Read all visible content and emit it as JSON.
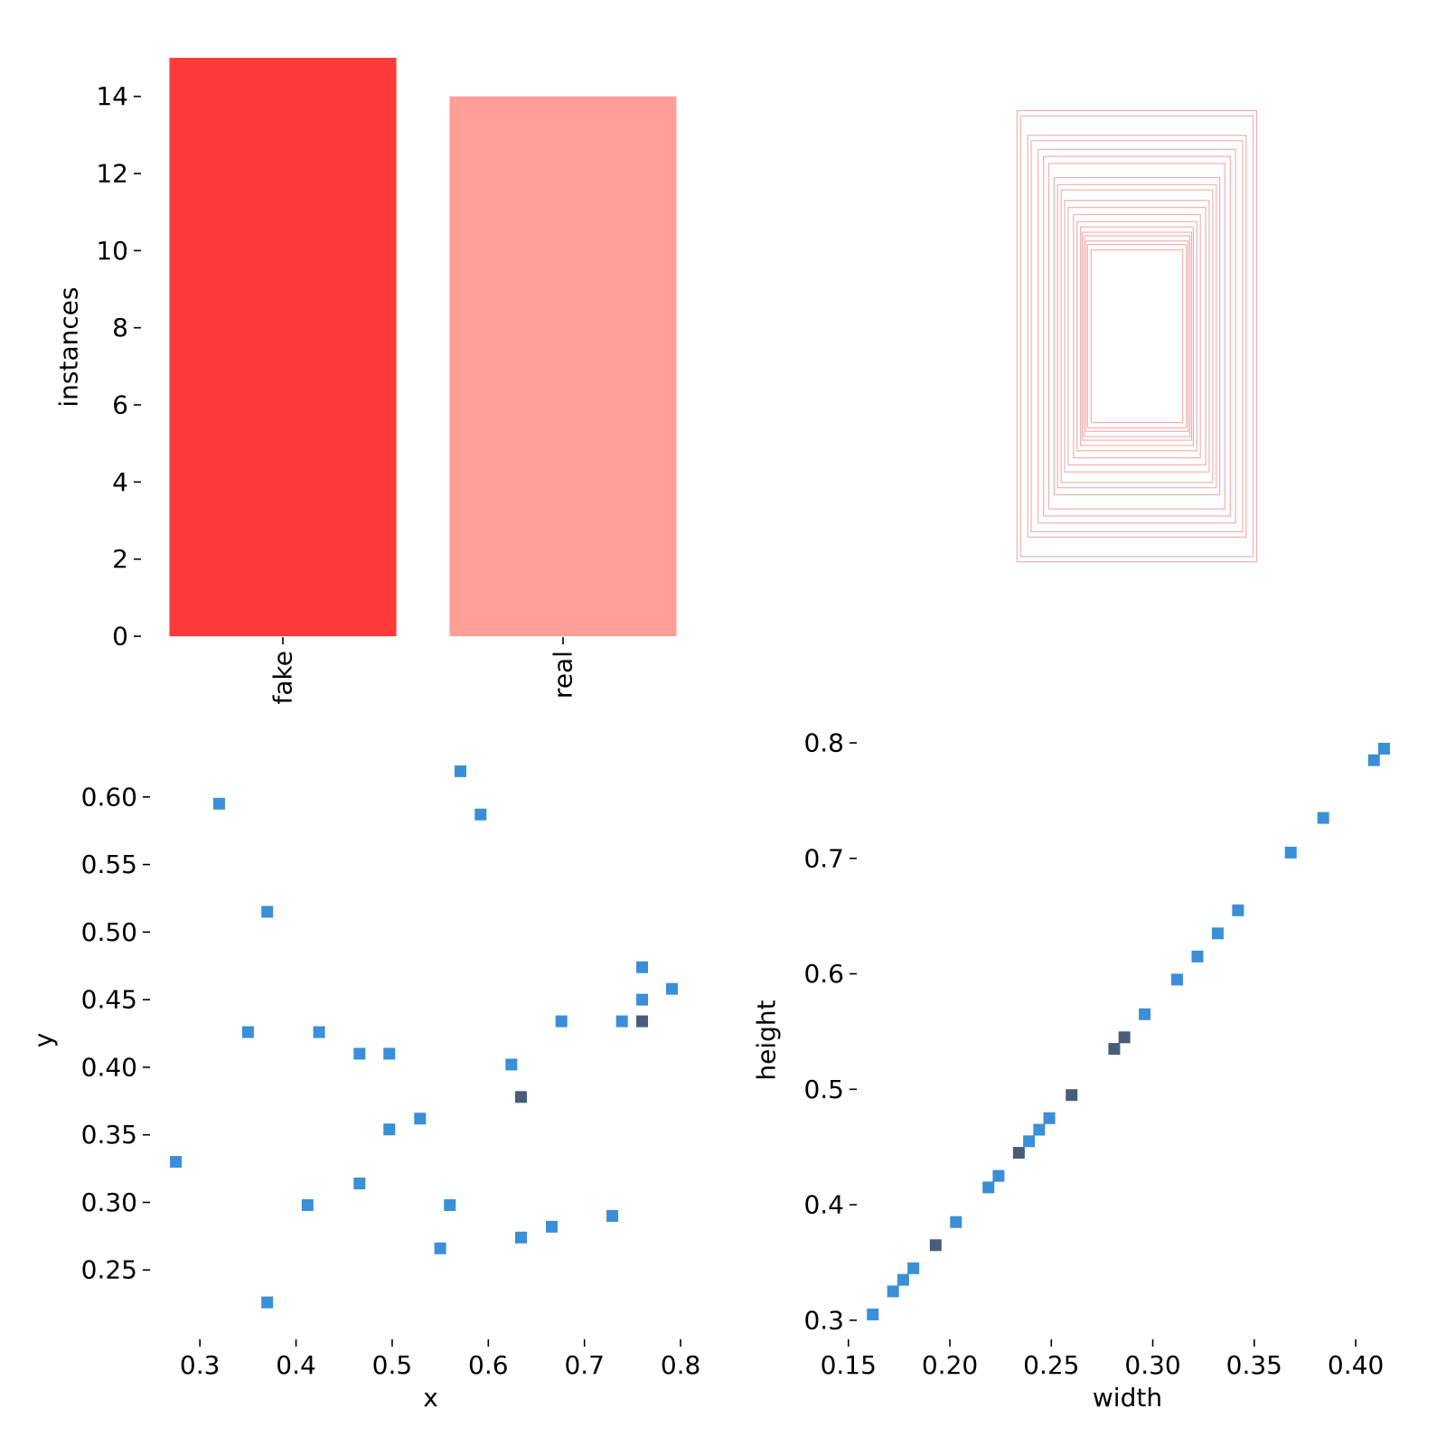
{
  "colors": {
    "fake_bar": "#ff3a3a",
    "real_bar": "#ff9f98",
    "box_stroke": "#e57373",
    "point": "#3a8fd8",
    "point_dense": "#4a5d78"
  },
  "chart_data": [
    {
      "id": "instances",
      "type": "bar",
      "categories": [
        "fake",
        "real"
      ],
      "values": [
        15,
        14
      ],
      "xlabel": "",
      "ylabel": "instances",
      "ylim": [
        0,
        15
      ],
      "yticks": [
        "0",
        "2",
        "4",
        "6",
        "8",
        "10",
        "12",
        "14"
      ],
      "grid": false
    },
    {
      "id": "boxes",
      "type": "other",
      "description_type": "box-outline-overlay",
      "boxes": [
        {
          "w": 0.34,
          "h": 0.64
        },
        {
          "w": 0.33,
          "h": 0.625
        },
        {
          "w": 0.31,
          "h": 0.57
        },
        {
          "w": 0.3,
          "h": 0.555
        },
        {
          "w": 0.28,
          "h": 0.53
        },
        {
          "w": 0.265,
          "h": 0.51
        },
        {
          "w": 0.25,
          "h": 0.49
        },
        {
          "w": 0.235,
          "h": 0.45
        },
        {
          "w": 0.225,
          "h": 0.43
        },
        {
          "w": 0.215,
          "h": 0.415
        },
        {
          "w": 0.205,
          "h": 0.385
        },
        {
          "w": 0.195,
          "h": 0.365
        },
        {
          "w": 0.18,
          "h": 0.345
        },
        {
          "w": 0.17,
          "h": 0.325
        },
        {
          "w": 0.16,
          "h": 0.31
        },
        {
          "w": 0.155,
          "h": 0.295
        },
        {
          "w": 0.15,
          "h": 0.285
        },
        {
          "w": 0.145,
          "h": 0.27
        },
        {
          "w": 0.14,
          "h": 0.26
        },
        {
          "w": 0.13,
          "h": 0.245
        }
      ]
    },
    {
      "id": "xy",
      "type": "scatter",
      "xlabel": "x",
      "ylabel": "y",
      "xlim": [
        0.25,
        0.83
      ],
      "ylim": [
        0.2,
        0.64
      ],
      "xticks": [
        "0.3",
        "0.4",
        "0.5",
        "0.6",
        "0.7",
        "0.8"
      ],
      "yticks": [
        "0.25",
        "0.30",
        "0.35",
        "0.40",
        "0.45",
        "0.50",
        "0.55",
        "0.60"
      ],
      "points": [
        {
          "x": 0.275,
          "y": 0.33,
          "d": 0
        },
        {
          "x": 0.32,
          "y": 0.595,
          "d": 0
        },
        {
          "x": 0.35,
          "y": 0.426,
          "d": 0
        },
        {
          "x": 0.37,
          "y": 0.515,
          "d": 0
        },
        {
          "x": 0.37,
          "y": 0.226,
          "d": 0
        },
        {
          "x": 0.412,
          "y": 0.298,
          "d": 0
        },
        {
          "x": 0.424,
          "y": 0.426,
          "d": 0
        },
        {
          "x": 0.466,
          "y": 0.41,
          "d": 0
        },
        {
          "x": 0.466,
          "y": 0.314,
          "d": 0
        },
        {
          "x": 0.497,
          "y": 0.41,
          "d": 0
        },
        {
          "x": 0.497,
          "y": 0.354,
          "d": 0
        },
        {
          "x": 0.529,
          "y": 0.362,
          "d": 0
        },
        {
          "x": 0.55,
          "y": 0.266,
          "d": 0
        },
        {
          "x": 0.56,
          "y": 0.298,
          "d": 0
        },
        {
          "x": 0.571,
          "y": 0.619,
          "d": 0
        },
        {
          "x": 0.592,
          "y": 0.587,
          "d": 0
        },
        {
          "x": 0.624,
          "y": 0.402,
          "d": 0
        },
        {
          "x": 0.634,
          "y": 0.378,
          "d": 1
        },
        {
          "x": 0.634,
          "y": 0.274,
          "d": 0
        },
        {
          "x": 0.666,
          "y": 0.282,
          "d": 0
        },
        {
          "x": 0.676,
          "y": 0.434,
          "d": 0
        },
        {
          "x": 0.729,
          "y": 0.29,
          "d": 0
        },
        {
          "x": 0.739,
          "y": 0.434,
          "d": 0
        },
        {
          "x": 0.76,
          "y": 0.474,
          "d": 0
        },
        {
          "x": 0.76,
          "y": 0.45,
          "d": 0
        },
        {
          "x": 0.76,
          "y": 0.434,
          "d": 1
        },
        {
          "x": 0.791,
          "y": 0.458,
          "d": 0
        }
      ]
    },
    {
      "id": "wh",
      "type": "scatter",
      "xlabel": "width",
      "ylabel": "height",
      "xlim": [
        0.155,
        0.42
      ],
      "ylim": [
        0.285,
        0.8
      ],
      "xticks": [
        "0.15",
        "0.20",
        "0.25",
        "0.30",
        "0.35",
        "0.40"
      ],
      "yticks": [
        "0.3",
        "0.4",
        "0.5",
        "0.6",
        "0.7",
        "0.8"
      ],
      "points": [
        {
          "x": 0.162,
          "y": 0.305,
          "d": 0
        },
        {
          "x": 0.172,
          "y": 0.325,
          "d": 0
        },
        {
          "x": 0.177,
          "y": 0.335,
          "d": 0
        },
        {
          "x": 0.182,
          "y": 0.345,
          "d": 0
        },
        {
          "x": 0.193,
          "y": 0.365,
          "d": 1
        },
        {
          "x": 0.203,
          "y": 0.385,
          "d": 0
        },
        {
          "x": 0.219,
          "y": 0.415,
          "d": 0
        },
        {
          "x": 0.224,
          "y": 0.425,
          "d": 0
        },
        {
          "x": 0.234,
          "y": 0.445,
          "d": 1
        },
        {
          "x": 0.239,
          "y": 0.455,
          "d": 0
        },
        {
          "x": 0.244,
          "y": 0.465,
          "d": 0
        },
        {
          "x": 0.249,
          "y": 0.475,
          "d": 0
        },
        {
          "x": 0.26,
          "y": 0.495,
          "d": 1
        },
        {
          "x": 0.281,
          "y": 0.535,
          "d": 1
        },
        {
          "x": 0.286,
          "y": 0.545,
          "d": 1
        },
        {
          "x": 0.296,
          "y": 0.565,
          "d": 0
        },
        {
          "x": 0.312,
          "y": 0.595,
          "d": 0
        },
        {
          "x": 0.322,
          "y": 0.615,
          "d": 0
        },
        {
          "x": 0.332,
          "y": 0.635,
          "d": 0
        },
        {
          "x": 0.342,
          "y": 0.655,
          "d": 0
        },
        {
          "x": 0.368,
          "y": 0.705,
          "d": 0
        },
        {
          "x": 0.384,
          "y": 0.735,
          "d": 0
        },
        {
          "x": 0.409,
          "y": 0.785,
          "d": 0
        },
        {
          "x": 0.414,
          "y": 0.795,
          "d": 0
        }
      ]
    }
  ]
}
